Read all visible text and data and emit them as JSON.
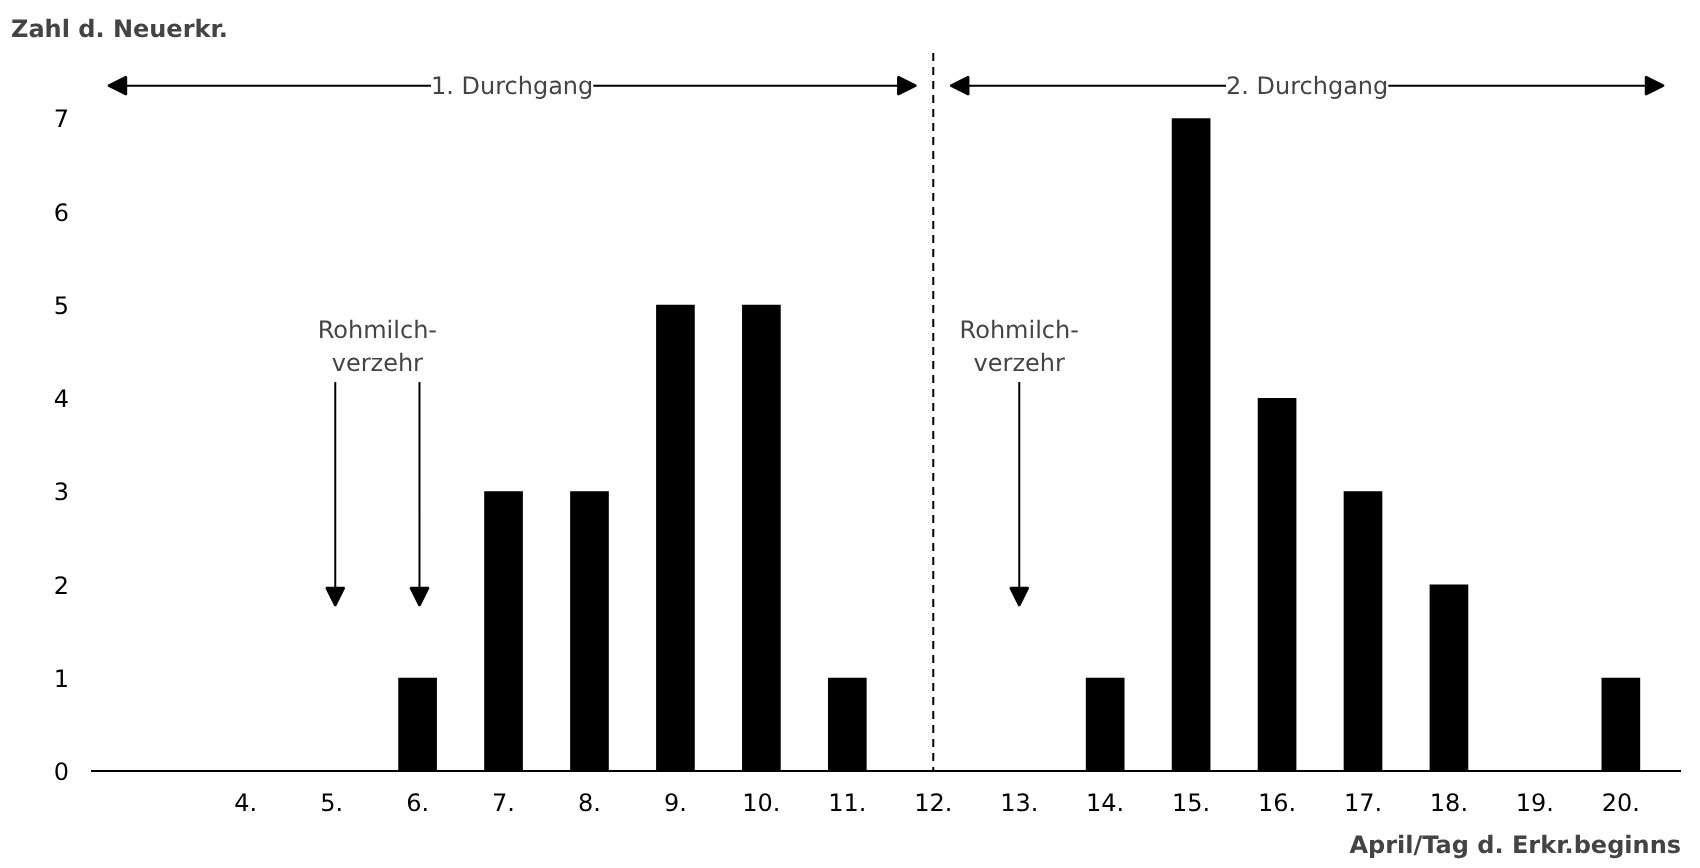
{
  "chart_data": {
    "type": "bar",
    "ylabel": "Zahl d. Neuerkr.",
    "xlabel": "April/Tag d. Erkr.beginns",
    "x": [
      4,
      5,
      6,
      7,
      8,
      9,
      10,
      11,
      12,
      13,
      14,
      15,
      16,
      17,
      18,
      19,
      20
    ],
    "values": [
      0,
      0,
      1,
      3,
      3,
      5,
      5,
      1,
      0,
      0,
      1,
      7,
      4,
      3,
      2,
      0,
      1
    ],
    "color": "#000000",
    "xlim": [
      2.2,
      20.7
    ],
    "ylim": [
      0,
      7.7
    ],
    "xticks": [
      {
        "value": 4,
        "label": "4."
      },
      {
        "value": 5,
        "label": "5."
      },
      {
        "value": 6,
        "label": "6."
      },
      {
        "value": 7,
        "label": "7."
      },
      {
        "value": 8,
        "label": "8."
      },
      {
        "value": 9,
        "label": "9."
      },
      {
        "value": 10,
        "label": "10."
      },
      {
        "value": 11,
        "label": "11."
      },
      {
        "value": 12,
        "label": "12."
      },
      {
        "value": 13,
        "label": "13."
      },
      {
        "value": 14,
        "label": "14."
      },
      {
        "value": 15,
        "label": "15."
      },
      {
        "value": 16,
        "label": "16."
      },
      {
        "value": 17,
        "label": "17."
      },
      {
        "value": 18,
        "label": "18."
      },
      {
        "value": 19,
        "label": "19."
      },
      {
        "value": 20,
        "label": "20."
      }
    ],
    "yticks": [
      0,
      1,
      2,
      3,
      4,
      5,
      6,
      7
    ],
    "ref_lines": [
      {
        "axis": "x",
        "value": 12,
        "line_style": "dashed",
        "color": "#000000"
      }
    ],
    "annotations": [
      "1. Durchgang",
      "2. Durchgang",
      "Rohmilch-\nverzehr",
      "Rohmilch-\nverzehr"
    ],
    "grid": false
  }
}
